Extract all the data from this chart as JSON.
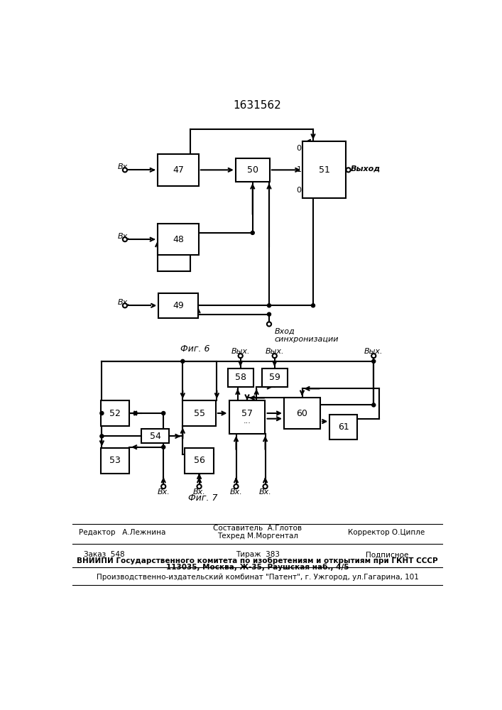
{
  "title": "1631562",
  "fig6_label": "Фиг. 6",
  "fig7_label": "Фиг. 7",
  "bg": "#ffffff",
  "lc": "#000000",
  "footer_editor": "Редактор   А.Лежнина",
  "footer_composer": "Составитель  А.Глотов",
  "footer_techred": "Техред М.Моргентал",
  "footer_corrector": "Корректор О.Ципле",
  "footer_order": "Заказ  548",
  "footer_tirazh": "Тираж  383",
  "footer_podpisnoe": "Подписное",
  "footer_vniipи": "ВНИИПИ Государственного комитета по изобретениям и открытиям при ГКНТ СССР",
  "footer_address": "113035, Москва, Ж-35, Раушская наб., 4/5",
  "footer_patent": "Производственно-издательский комбинат \"Патент\", г. Ужгород, ул.Гагарина, 101"
}
